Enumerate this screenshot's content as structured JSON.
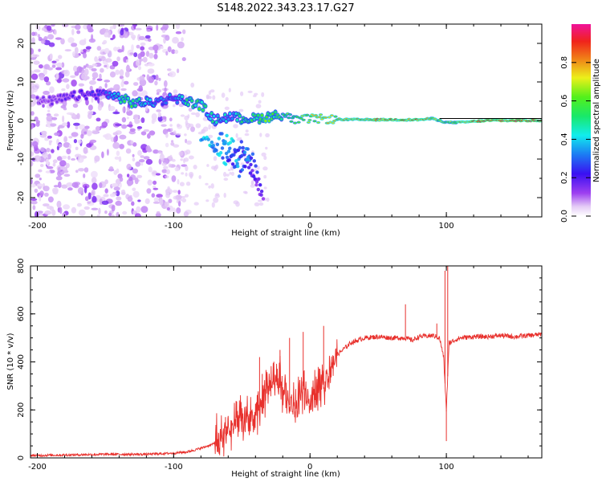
{
  "title": "S148.2022.343.23.17.G27",
  "chart_data": [
    {
      "type": "heatmap",
      "name": "spectrogram",
      "xlabel": "Height of straight line (km)",
      "ylabel": "Frequency (Hz)",
      "xlim": [
        -205,
        170
      ],
      "ylim": [
        -25,
        25
      ],
      "xticks": [
        -200,
        -100,
        0,
        100
      ],
      "xtick_labels": [
        "-200",
        "-100",
        "0",
        "100"
      ],
      "yticks": [
        -20,
        -10,
        0,
        10,
        20
      ],
      "ytick_labels": [
        "-20",
        "-10",
        "0",
        "10",
        "20"
      ],
      "colorbar": {
        "label": "Normalized spectral amplitude",
        "range": [
          0,
          1
        ],
        "ticks": [
          0.0,
          0.2,
          0.4,
          0.6,
          0.8
        ],
        "tick_labels": [
          "0.0",
          "0.2",
          "0.4",
          "0.6",
          "0.8"
        ]
      },
      "ridge": [
        {
          "x": -190,
          "f": 5.0,
          "a": 0.15
        },
        {
          "x": -170,
          "f": 6.5,
          "a": 0.2
        },
        {
          "x": -150,
          "f": 7.0,
          "a": 0.25
        },
        {
          "x": -140,
          "f": 6.0,
          "a": 0.45
        },
        {
          "x": -130,
          "f": 4.5,
          "a": 0.55
        },
        {
          "x": -110,
          "f": 5.0,
          "a": 0.3
        },
        {
          "x": -100,
          "f": 6.0,
          "a": 0.35
        },
        {
          "x": -90,
          "f": 5.0,
          "a": 0.5
        },
        {
          "x": -80,
          "f": 4.0,
          "a": 0.55
        },
        {
          "x": -70,
          "f": 0.0,
          "a": 0.45
        },
        {
          "x": -60,
          "f": 1.0,
          "a": 0.4
        },
        {
          "x": -50,
          "f": 0.5,
          "a": 0.45
        },
        {
          "x": -40,
          "f": 0.5,
          "a": 0.55
        },
        {
          "x": -30,
          "f": 1.0,
          "a": 0.6
        },
        {
          "x": -20,
          "f": 1.5,
          "a": 0.55
        },
        {
          "x": -10,
          "f": 0.0,
          "a": 0.65
        },
        {
          "x": 0,
          "f": 0.5,
          "a": 0.7
        },
        {
          "x": 20,
          "f": 0.3,
          "a": 0.75
        },
        {
          "x": 40,
          "f": 0.2,
          "a": 0.8
        },
        {
          "x": 60,
          "f": 0.2,
          "a": 0.85
        },
        {
          "x": 80,
          "f": 0.2,
          "a": 0.85
        },
        {
          "x": 90,
          "f": 0.5,
          "a": 0.7
        },
        {
          "x": 100,
          "f": -0.5,
          "a": 0.6
        },
        {
          "x": 110,
          "f": -0.5,
          "a": 0.75
        },
        {
          "x": 130,
          "f": 0.0,
          "a": 0.95
        },
        {
          "x": 150,
          "f": 0.0,
          "a": 0.95
        },
        {
          "x": 165,
          "f": 0.0,
          "a": 0.95
        }
      ],
      "branches": [
        {
          "x": -75,
          "f": -5.0,
          "a": 0.4
        },
        {
          "x": -70,
          "f": -8.0,
          "a": 0.35
        },
        {
          "x": -65,
          "f": -3.0,
          "a": 0.4
        },
        {
          "x": -60,
          "f": -10.0,
          "a": 0.3
        },
        {
          "x": -50,
          "f": -6.0,
          "a": 0.3
        },
        {
          "x": -45,
          "f": -12.0,
          "a": 0.2
        },
        {
          "x": -40,
          "f": -16.0,
          "a": 0.15
        }
      ],
      "reference_line": {
        "f": 0,
        "x_from": 95,
        "x_to": 170
      }
    },
    {
      "type": "line",
      "name": "snr",
      "xlabel": "Height of straight line (km)",
      "ylabel": "SNR (10 * v/v)",
      "xlim": [
        -205,
        170
      ],
      "ylim": [
        0,
        800
      ],
      "xticks": [
        -200,
        -100,
        0,
        100
      ],
      "xtick_labels": [
        "-200",
        "-100",
        "0",
        "100"
      ],
      "yticks": [
        0,
        200,
        400,
        600,
        800
      ],
      "ytick_labels": [
        "0",
        "200",
        "400",
        "600",
        "800"
      ],
      "color": "#e8302c",
      "x": [
        -205,
        -180,
        -150,
        -120,
        -100,
        -90,
        -80,
        -70,
        -60,
        -55,
        -50,
        -40,
        -35,
        -30,
        -25,
        -20,
        -15,
        -10,
        -5,
        0,
        5,
        10,
        15,
        20,
        30,
        40,
        50,
        60,
        70,
        75,
        80,
        90,
        95,
        98,
        100,
        102,
        110,
        120,
        130,
        140,
        150,
        160,
        170
      ],
      "y": [
        10,
        12,
        15,
        15,
        20,
        25,
        40,
        60,
        110,
        130,
        150,
        160,
        240,
        300,
        330,
        280,
        220,
        200,
        300,
        250,
        280,
        310,
        380,
        430,
        480,
        500,
        505,
        500,
        500,
        490,
        505,
        510,
        500,
        420,
        200,
        480,
        500,
        505,
        505,
        510,
        505,
        510,
        515
      ],
      "spikes": [
        {
          "x": -62,
          "y": 170
        },
        {
          "x": -37,
          "y": 420
        },
        {
          "x": -35,
          "y": 350
        },
        {
          "x": -22,
          "y": 450
        },
        {
          "x": -15,
          "y": 500
        },
        {
          "x": -5,
          "y": 525
        },
        {
          "x": 10,
          "y": 550
        },
        {
          "x": 70,
          "y": 640
        },
        {
          "x": 93,
          "y": 560
        },
        {
          "x": 99,
          "y": 780
        },
        {
          "x": 100,
          "y": 70
        },
        {
          "x": 101,
          "y": 800
        }
      ]
    }
  ]
}
